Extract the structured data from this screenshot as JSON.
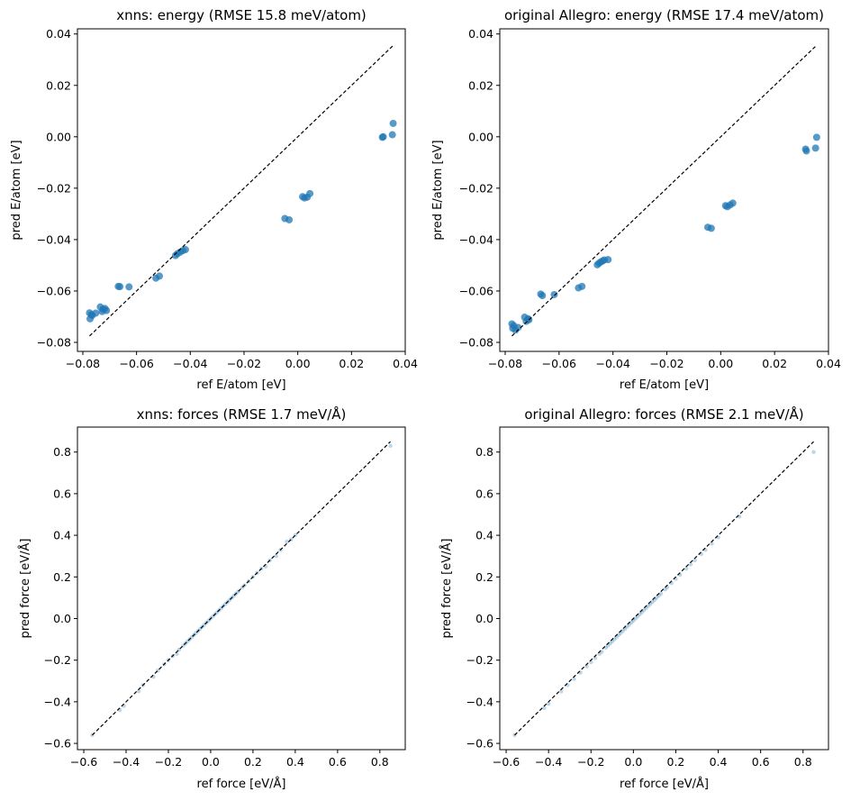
{
  "figure": {
    "background": "#ffffff",
    "point_color": "#1f77b4",
    "identity_line_color": "#000000"
  },
  "chart_data": [
    {
      "type": "scatter",
      "title": "xnns: energy (RMSE 15.8 meV/atom)",
      "xlabel": "ref E/atom [eV]",
      "ylabel": "pred E/atom [eV]",
      "xlim": [
        -0.082,
        0.04
      ],
      "ylim": [
        -0.0835,
        0.042
      ],
      "xticks": [
        -0.08,
        -0.06,
        -0.04,
        -0.02,
        0.0,
        0.02,
        0.04
      ],
      "yticks": [
        -0.08,
        -0.06,
        -0.04,
        -0.02,
        0.0,
        0.02,
        0.04
      ],
      "xtick_labels": [
        "−0.08",
        "−0.06",
        "−0.04",
        "−0.02",
        "0.00",
        "0.02",
        "0.04"
      ],
      "ytick_labels": [
        "−0.08",
        "−0.06",
        "−0.04",
        "−0.02",
        "0.00",
        "0.02",
        "0.04"
      ],
      "identity_line": [
        -0.0775,
        0.0355
      ],
      "point_radius": 4,
      "point_opacity": 0.75,
      "series": [
        {
          "x": [
            -0.0775,
            -0.0773,
            -0.0768,
            -0.0765,
            -0.0752,
            -0.0735,
            -0.0728,
            -0.0725,
            -0.0718,
            -0.0712,
            -0.0668,
            -0.0662,
            -0.0628,
            -0.0528,
            -0.0515,
            -0.0455,
            -0.0448,
            -0.0438,
            -0.0428,
            -0.0418,
            -0.0048,
            -0.0032,
            0.0018,
            0.0025,
            0.0035,
            0.0045,
            0.0315,
            0.0318,
            0.0352,
            0.0355
          ],
          "y": [
            -0.0685,
            -0.0708,
            -0.0692,
            -0.0695,
            -0.0686,
            -0.0662,
            -0.068,
            -0.0671,
            -0.0668,
            -0.0676,
            -0.0582,
            -0.0583,
            -0.0584,
            -0.055,
            -0.0542,
            -0.0462,
            -0.0455,
            -0.0449,
            -0.0443,
            -0.0439,
            -0.0318,
            -0.0323,
            -0.0233,
            -0.0238,
            -0.0235,
            -0.0221,
            -0.0002,
            0.0,
            0.0008,
            0.0052
          ]
        }
      ]
    },
    {
      "type": "scatter",
      "title": "original Allegro: energy (RMSE 17.4 meV/atom)",
      "xlabel": "ref E/atom [eV]",
      "ylabel": "pred E/atom [eV]",
      "xlim": [
        -0.082,
        0.04
      ],
      "ylim": [
        -0.0835,
        0.042
      ],
      "xticks": [
        -0.08,
        -0.06,
        -0.04,
        -0.02,
        0.0,
        0.02,
        0.04
      ],
      "yticks": [
        -0.08,
        -0.06,
        -0.04,
        -0.02,
        0.0,
        0.02,
        0.04
      ],
      "xtick_labels": [
        "−0.08",
        "−0.06",
        "−0.04",
        "−0.02",
        "0.00",
        "0.02",
        "0.04"
      ],
      "ytick_labels": [
        "−0.08",
        "−0.06",
        "−0.04",
        "−0.02",
        "0.00",
        "0.02",
        "0.04"
      ],
      "identity_line": [
        -0.0775,
        0.0355
      ],
      "point_radius": 4,
      "point_opacity": 0.75,
      "series": [
        {
          "x": [
            -0.0775,
            -0.0772,
            -0.0768,
            -0.0762,
            -0.0752,
            -0.0728,
            -0.0722,
            -0.0715,
            -0.0712,
            -0.0668,
            -0.0662,
            -0.0618,
            -0.0528,
            -0.0515,
            -0.0458,
            -0.0452,
            -0.0445,
            -0.0438,
            -0.0432,
            -0.0418,
            -0.0048,
            -0.0035,
            0.0018,
            0.0025,
            0.0035,
            0.0045,
            0.0315,
            0.0318,
            0.0352,
            0.0356
          ],
          "y": [
            -0.0728,
            -0.0745,
            -0.0735,
            -0.0752,
            -0.0742,
            -0.0702,
            -0.0718,
            -0.0708,
            -0.0712,
            -0.0612,
            -0.0618,
            -0.0614,
            -0.0588,
            -0.0582,
            -0.0498,
            -0.0492,
            -0.0487,
            -0.0483,
            -0.0479,
            -0.0478,
            -0.0352,
            -0.0356,
            -0.0268,
            -0.0272,
            -0.0265,
            -0.0258,
            -0.0048,
            -0.0055,
            -0.0044,
            -0.0002
          ]
        }
      ]
    },
    {
      "type": "scatter",
      "title": "xnns: forces (RMSE 1.7 meV/Å)",
      "xlabel": "ref force [eV/Å]",
      "ylabel": "pred force [eV/Å]",
      "xlim": [
        -0.63,
        0.92
      ],
      "ylim": [
        -0.63,
        0.92
      ],
      "xticks": [
        -0.6,
        -0.4,
        -0.2,
        0.0,
        0.2,
        0.4,
        0.6,
        0.8
      ],
      "yticks": [
        -0.6,
        -0.4,
        -0.2,
        0.0,
        0.2,
        0.4,
        0.6,
        0.8
      ],
      "xtick_labels": [
        "−0.6",
        "−0.4",
        "−0.2",
        "0.0",
        "0.2",
        "0.4",
        "0.6",
        "0.8"
      ],
      "ytick_labels": [
        "−0.6",
        "−0.4",
        "−0.2",
        "0.0",
        "0.2",
        "0.4",
        "0.6",
        "0.8"
      ],
      "identity_line": [
        -0.56,
        0.85
      ],
      "point_radius": 2.2,
      "point_opacity": 0.3,
      "series": [
        {
          "x": [
            -0.56,
            -0.43,
            -0.41,
            -0.34,
            -0.32,
            -0.27,
            -0.25,
            -0.22,
            -0.2,
            -0.18,
            -0.16,
            -0.15,
            -0.13,
            -0.12,
            -0.11,
            -0.1,
            -0.09,
            -0.08,
            -0.07,
            -0.06,
            -0.05,
            -0.04,
            -0.03,
            -0.02,
            -0.01,
            0.0,
            0.01,
            0.02,
            0.03,
            0.04,
            0.05,
            0.06,
            0.07,
            0.08,
            0.09,
            0.1,
            0.11,
            0.12,
            0.13,
            0.15,
            0.16,
            0.18,
            0.2,
            0.22,
            0.24,
            0.26,
            0.28,
            0.31,
            0.33,
            0.36,
            0.38,
            0.4,
            0.85
          ],
          "y": [
            -0.56,
            -0.44,
            -0.42,
            -0.35,
            -0.32,
            -0.28,
            -0.25,
            -0.22,
            -0.2,
            -0.18,
            -0.17,
            -0.15,
            -0.13,
            -0.12,
            -0.11,
            -0.1,
            -0.09,
            -0.08,
            -0.07,
            -0.06,
            -0.05,
            -0.04,
            -0.03,
            -0.02,
            -0.01,
            0.0,
            0.01,
            0.02,
            0.03,
            0.04,
            0.05,
            0.06,
            0.07,
            0.08,
            0.09,
            0.1,
            0.11,
            0.12,
            0.13,
            0.15,
            0.16,
            0.18,
            0.2,
            0.22,
            0.24,
            0.25,
            0.28,
            0.3,
            0.33,
            0.37,
            0.38,
            0.4,
            0.83
          ]
        }
      ]
    },
    {
      "type": "scatter",
      "title": "original Allegro: forces (RMSE 2.1 meV/Å)",
      "xlabel": "ref force [eV/Å]",
      "ylabel": "pred force [eV/Å]",
      "xlim": [
        -0.63,
        0.92
      ],
      "ylim": [
        -0.63,
        0.92
      ],
      "xticks": [
        -0.6,
        -0.4,
        -0.2,
        0.0,
        0.2,
        0.4,
        0.6,
        0.8
      ],
      "yticks": [
        -0.6,
        -0.4,
        -0.2,
        0.0,
        0.2,
        0.4,
        0.6,
        0.8
      ],
      "xtick_labels": [
        "−0.6",
        "−0.4",
        "−0.2",
        "0.0",
        "0.2",
        "0.4",
        "0.6",
        "0.8"
      ],
      "ytick_labels": [
        "−0.6",
        "−0.4",
        "−0.2",
        "0.0",
        "0.2",
        "0.4",
        "0.6",
        "0.8"
      ],
      "identity_line": [
        -0.56,
        0.85
      ],
      "point_radius": 2.2,
      "point_opacity": 0.3,
      "series": [
        {
          "x": [
            -0.56,
            -0.42,
            -0.4,
            -0.34,
            -0.31,
            -0.28,
            -0.25,
            -0.22,
            -0.2,
            -0.18,
            -0.16,
            -0.15,
            -0.13,
            -0.12,
            -0.11,
            -0.1,
            -0.09,
            -0.08,
            -0.07,
            -0.06,
            -0.05,
            -0.04,
            -0.03,
            -0.02,
            -0.01,
            0.0,
            0.01,
            0.02,
            0.03,
            0.04,
            0.05,
            0.06,
            0.07,
            0.08,
            0.09,
            0.1,
            0.11,
            0.12,
            0.13,
            0.15,
            0.16,
            0.18,
            0.2,
            0.22,
            0.25,
            0.27,
            0.29,
            0.32,
            0.34,
            0.37,
            0.4,
            0.5,
            0.85
          ],
          "y": [
            -0.56,
            -0.43,
            -0.41,
            -0.35,
            -0.32,
            -0.29,
            -0.26,
            -0.23,
            -0.21,
            -0.19,
            -0.17,
            -0.16,
            -0.14,
            -0.13,
            -0.12,
            -0.11,
            -0.1,
            -0.09,
            -0.08,
            -0.07,
            -0.06,
            -0.05,
            -0.04,
            -0.03,
            -0.02,
            -0.01,
            0.0,
            0.01,
            0.02,
            0.03,
            0.04,
            0.05,
            0.06,
            0.07,
            0.08,
            0.09,
            0.1,
            0.11,
            0.12,
            0.14,
            0.15,
            0.17,
            0.19,
            0.21,
            0.24,
            0.26,
            0.28,
            0.31,
            0.33,
            0.36,
            0.39,
            0.49,
            0.8
          ]
        }
      ]
    }
  ]
}
